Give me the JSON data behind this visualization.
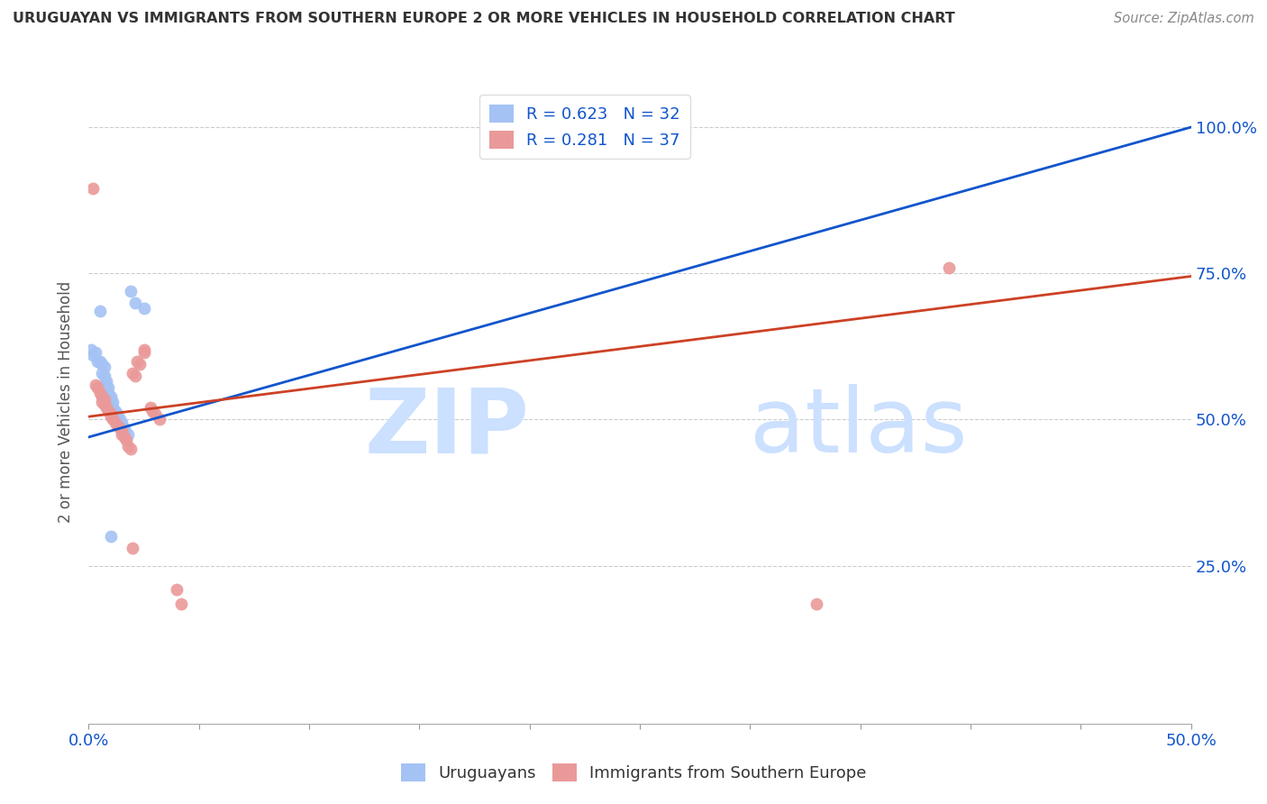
{
  "title": "URUGUAYAN VS IMMIGRANTS FROM SOUTHERN EUROPE 2 OR MORE VEHICLES IN HOUSEHOLD CORRELATION CHART",
  "source": "Source: ZipAtlas.com",
  "ylabel": "2 or more Vehicles in Household",
  "yticks_labels": [
    "100.0%",
    "75.0%",
    "50.0%",
    "25.0%"
  ],
  "ytick_vals": [
    1.0,
    0.75,
    0.5,
    0.25
  ],
  "xlim": [
    0.0,
    0.5
  ],
  "ylim": [
    -0.02,
    1.08
  ],
  "legend_label1": "Uruguayans",
  "legend_label2": "Immigrants from Southern Europe",
  "r_blue": 0.623,
  "r_pink": 0.281,
  "n_blue": 32,
  "n_pink": 37,
  "blue_color": "#a4c2f4",
  "pink_color": "#ea9999",
  "blue_line_color": "#1155cc",
  "pink_line_color": "#cc4125",
  "blue_scatter": [
    [
      0.001,
      0.62
    ],
    [
      0.002,
      0.61
    ],
    [
      0.003,
      0.615
    ],
    [
      0.004,
      0.6
    ],
    [
      0.005,
      0.685
    ],
    [
      0.005,
      0.6
    ],
    [
      0.006,
      0.595
    ],
    [
      0.006,
      0.58
    ],
    [
      0.007,
      0.59
    ],
    [
      0.007,
      0.575
    ],
    [
      0.008,
      0.565
    ],
    [
      0.008,
      0.56
    ],
    [
      0.009,
      0.555
    ],
    [
      0.009,
      0.545
    ],
    [
      0.01,
      0.54
    ],
    [
      0.01,
      0.535
    ],
    [
      0.011,
      0.53
    ],
    [
      0.011,
      0.52
    ],
    [
      0.012,
      0.515
    ],
    [
      0.013,
      0.51
    ],
    [
      0.013,
      0.505
    ],
    [
      0.014,
      0.5
    ],
    [
      0.015,
      0.495
    ],
    [
      0.015,
      0.49
    ],
    [
      0.016,
      0.485
    ],
    [
      0.016,
      0.48
    ],
    [
      0.018,
      0.475
    ],
    [
      0.019,
      0.72
    ],
    [
      0.021,
      0.7
    ],
    [
      0.025,
      0.69
    ],
    [
      0.01,
      0.3
    ],
    [
      0.27,
      1.0
    ]
  ],
  "pink_scatter": [
    [
      0.002,
      0.895
    ],
    [
      0.003,
      0.56
    ],
    [
      0.004,
      0.555
    ],
    [
      0.005,
      0.545
    ],
    [
      0.006,
      0.54
    ],
    [
      0.007,
      0.535
    ],
    [
      0.006,
      0.53
    ],
    [
      0.007,
      0.525
    ],
    [
      0.008,
      0.52
    ],
    [
      0.009,
      0.515
    ],
    [
      0.01,
      0.51
    ],
    [
      0.01,
      0.505
    ],
    [
      0.011,
      0.5
    ],
    [
      0.012,
      0.495
    ],
    [
      0.013,
      0.49
    ],
    [
      0.014,
      0.485
    ],
    [
      0.015,
      0.48
    ],
    [
      0.015,
      0.475
    ],
    [
      0.016,
      0.47
    ],
    [
      0.017,
      0.465
    ],
    [
      0.018,
      0.455
    ],
    [
      0.019,
      0.45
    ],
    [
      0.02,
      0.58
    ],
    [
      0.021,
      0.575
    ],
    [
      0.022,
      0.6
    ],
    [
      0.023,
      0.595
    ],
    [
      0.025,
      0.62
    ],
    [
      0.025,
      0.615
    ],
    [
      0.028,
      0.52
    ],
    [
      0.029,
      0.515
    ],
    [
      0.03,
      0.51
    ],
    [
      0.032,
      0.5
    ],
    [
      0.02,
      0.28
    ],
    [
      0.04,
      0.21
    ],
    [
      0.39,
      0.76
    ],
    [
      0.33,
      0.185
    ],
    [
      0.042,
      0.185
    ]
  ],
  "blue_line": [
    [
      0.0,
      0.47
    ],
    [
      0.5,
      1.0
    ]
  ],
  "pink_line": [
    [
      0.0,
      0.505
    ],
    [
      0.5,
      0.745
    ]
  ]
}
